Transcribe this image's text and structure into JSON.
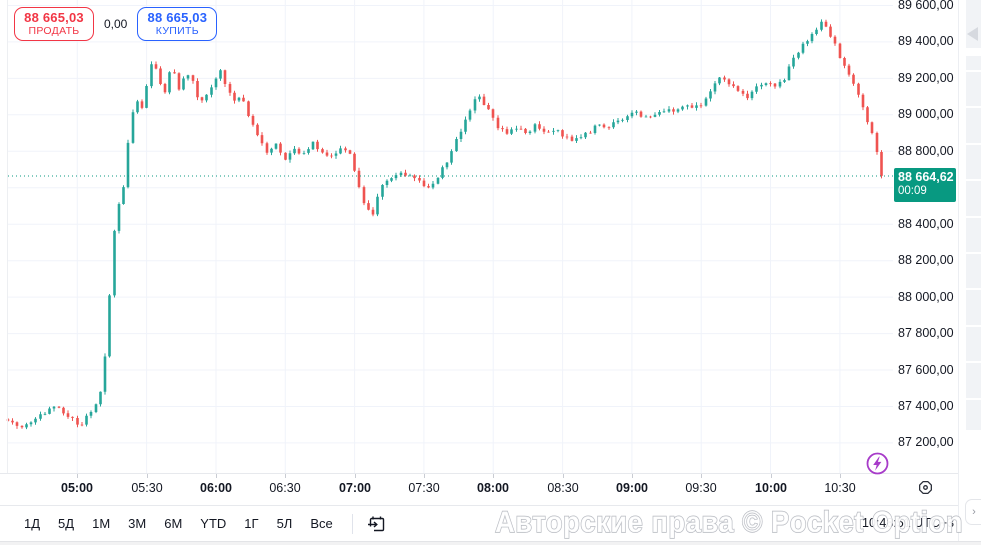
{
  "trade_panel": {
    "sell_price": "88 665,03",
    "sell_label": "ПРОДАТЬ",
    "spread": "0,00",
    "buy_price": "88 665,03",
    "buy_label": "КУПИТЬ",
    "sell_color": "#f23645",
    "buy_color": "#2962ff"
  },
  "last_price_label": {
    "price": "88 664,62",
    "countdown": "00:09",
    "color": "#089981"
  },
  "watermark": "Авторские права © Pocket Option",
  "status_bar": {
    "clock": "10:48:51 UTC+3"
  },
  "toolbar": {
    "ranges": [
      "1Д",
      "5Д",
      "1М",
      "3М",
      "6М",
      "YTD",
      "1Г",
      "5Л",
      "Все"
    ]
  },
  "icons": {
    "go_to_date": "calendar-arrow",
    "flash": "lightning-circle",
    "price_scale_settings": "octagon-dot",
    "panel_collapse": "triangle-left",
    "panel_expand": "chevron-right"
  },
  "chart_data": {
    "type": "candlestick",
    "up_color": "#26a69a",
    "down_color": "#ef5350",
    "grid": true,
    "grid_color": "#f0f3fa",
    "current_price": 88664.62,
    "candle_interval_minutes": 2,
    "price_axis": {
      "visible_range": [
        87035,
        89630
      ],
      "grid_step": 200,
      "ticks": [
        {
          "label": "89 600,00",
          "value": 89600
        },
        {
          "label": "89 400,00",
          "value": 89400
        },
        {
          "label": "89 200,00",
          "value": 89200
        },
        {
          "label": "89 000,00",
          "value": 89000
        },
        {
          "label": "88 800,00",
          "value": 88800
        },
        {
          "label": "88 400,00",
          "value": 88400
        },
        {
          "label": "88 200,00",
          "value": 88200
        },
        {
          "label": "88 000,00",
          "value": 88000
        },
        {
          "label": "87 800,00",
          "value": 87800
        },
        {
          "label": "87 600,00",
          "value": 87600
        },
        {
          "label": "87 400,00",
          "value": 87400
        },
        {
          "label": "87 200,00",
          "value": 87200
        }
      ]
    },
    "time_axis": {
      "visible_range_minutes": [
        270,
        653
      ],
      "ticks": [
        {
          "label": "05:00",
          "minutes": 300,
          "major": true
        },
        {
          "label": "05:30",
          "minutes": 330,
          "major": false
        },
        {
          "label": "06:00",
          "minutes": 360,
          "major": true
        },
        {
          "label": "06:30",
          "minutes": 390,
          "major": false
        },
        {
          "label": "07:00",
          "minutes": 420,
          "major": true
        },
        {
          "label": "07:30",
          "minutes": 450,
          "major": false
        },
        {
          "label": "08:00",
          "minutes": 480,
          "major": true
        },
        {
          "label": "08:30",
          "minutes": 510,
          "major": false
        },
        {
          "label": "09:00",
          "minutes": 540,
          "major": true
        },
        {
          "label": "09:30",
          "minutes": 570,
          "major": false
        },
        {
          "label": "10:00",
          "minutes": 600,
          "major": true
        },
        {
          "label": "10:30",
          "minutes": 630,
          "major": false
        }
      ]
    },
    "price_path": [
      [
        270,
        87310
      ],
      [
        276,
        87290
      ],
      [
        284,
        87350
      ],
      [
        290,
        87400
      ],
      [
        296,
        87340
      ],
      [
        302,
        87300
      ],
      [
        308,
        87420
      ],
      [
        311,
        87500
      ],
      [
        314,
        88000
      ],
      [
        317,
        88550
      ],
      [
        319,
        88480
      ],
      [
        322,
        88850
      ],
      [
        325,
        89100
      ],
      [
        328,
        89030
      ],
      [
        330,
        89150
      ],
      [
        333,
        89350
      ],
      [
        335,
        89180
      ],
      [
        338,
        89120
      ],
      [
        341,
        89280
      ],
      [
        344,
        89150
      ],
      [
        347,
        89230
      ],
      [
        350,
        89180
      ],
      [
        353,
        89060
      ],
      [
        356,
        89120
      ],
      [
        359,
        89180
      ],
      [
        362,
        89240
      ],
      [
        365,
        89150
      ],
      [
        368,
        89080
      ],
      [
        371,
        89100
      ],
      [
        374,
        88990
      ],
      [
        378,
        88880
      ],
      [
        382,
        88800
      ],
      [
        386,
        88840
      ],
      [
        390,
        88760
      ],
      [
        394,
        88820
      ],
      [
        398,
        88780
      ],
      [
        402,
        88850
      ],
      [
        406,
        88800
      ],
      [
        410,
        88770
      ],
      [
        414,
        88820
      ],
      [
        418,
        88780
      ],
      [
        420,
        88700
      ],
      [
        423,
        88550
      ],
      [
        426,
        88480
      ],
      [
        428,
        88455
      ],
      [
        430,
        88560
      ],
      [
        433,
        88630
      ],
      [
        436,
        88660
      ],
      [
        439,
        88690
      ],
      [
        442,
        88660
      ],
      [
        445,
        88670
      ],
      [
        448,
        88640
      ],
      [
        451,
        88590
      ],
      [
        454,
        88620
      ],
      [
        457,
        88680
      ],
      [
        460,
        88750
      ],
      [
        463,
        88830
      ],
      [
        466,
        88920
      ],
      [
        469,
        89000
      ],
      [
        472,
        89080
      ],
      [
        474,
        89100
      ],
      [
        477,
        89050
      ],
      [
        480,
        88980
      ],
      [
        483,
        88920
      ],
      [
        486,
        88900
      ],
      [
        490,
        88930
      ],
      [
        494,
        88890
      ],
      [
        498,
        88950
      ],
      [
        502,
        88900
      ],
      [
        506,
        88920
      ],
      [
        510,
        88890
      ],
      [
        514,
        88850
      ],
      [
        518,
        88880
      ],
      [
        522,
        88910
      ],
      [
        526,
        88950
      ],
      [
        530,
        88930
      ],
      [
        534,
        88970
      ],
      [
        538,
        88990
      ],
      [
        542,
        89010
      ],
      [
        546,
        88990
      ],
      [
        550,
        89010
      ],
      [
        554,
        89030
      ],
      [
        558,
        89010
      ],
      [
        562,
        89050
      ],
      [
        566,
        89030
      ],
      [
        570,
        89060
      ],
      [
        574,
        89120
      ],
      [
        578,
        89200
      ],
      [
        582,
        89180
      ],
      [
        586,
        89120
      ],
      [
        590,
        89090
      ],
      [
        594,
        89150
      ],
      [
        598,
        89170
      ],
      [
        602,
        89150
      ],
      [
        606,
        89200
      ],
      [
        610,
        89320
      ],
      [
        614,
        89380
      ],
      [
        618,
        89440
      ],
      [
        622,
        89505
      ],
      [
        625,
        89470
      ],
      [
        628,
        89380
      ],
      [
        631,
        89290
      ],
      [
        634,
        89210
      ],
      [
        637,
        89160
      ],
      [
        640,
        89030
      ],
      [
        643,
        88940
      ],
      [
        645,
        88840
      ],
      [
        647,
        88740
      ],
      [
        649,
        88664.62
      ]
    ]
  }
}
